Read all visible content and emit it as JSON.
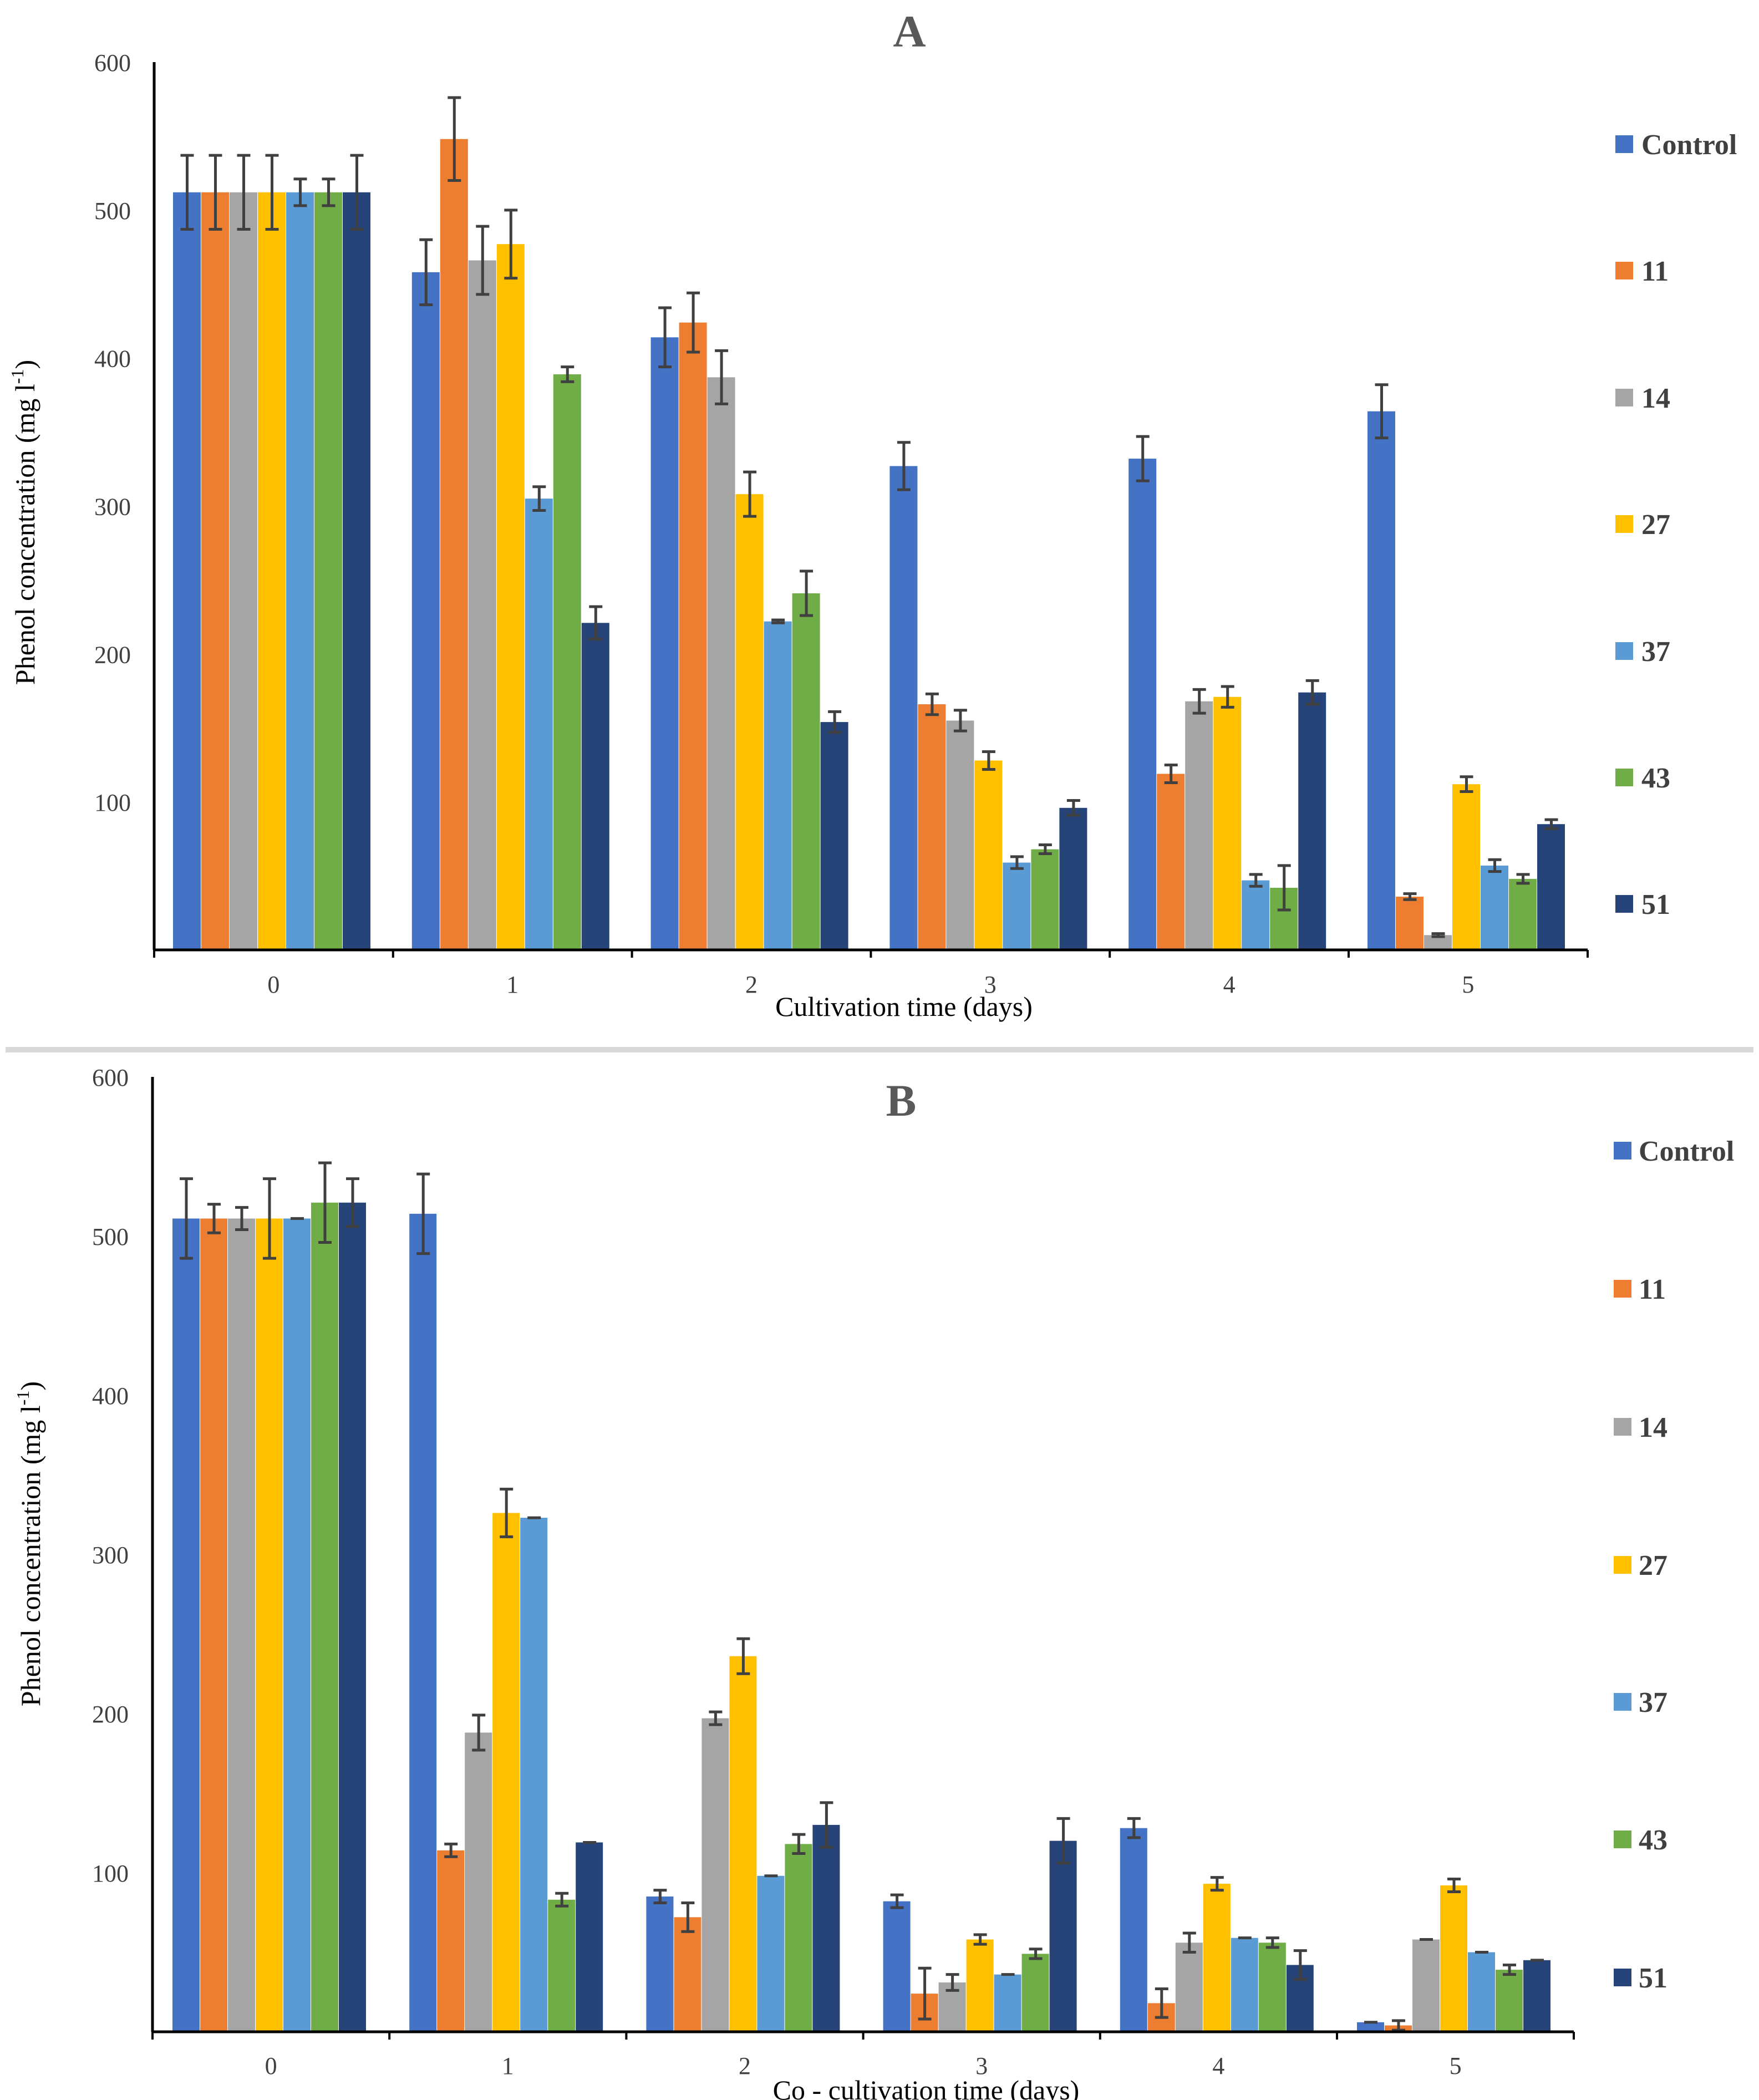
{
  "colors": {
    "Control": "#4472C4",
    "11": "#ED7D31",
    "14": "#A5A5A5",
    "27": "#FFC000",
    "37": "#5B9BD5",
    "43": "#70AD47",
    "51": "#264478",
    "error_bar": "#404040",
    "axis": "#000000",
    "separator": "#D9D9D9"
  },
  "chart_data": [
    {
      "type": "bar",
      "panel": "A",
      "title": "A",
      "xlabel": "Cultivation time (days)",
      "ylabel_main": "Phenol concentration (mg l",
      "ylabel_sup": "-1",
      "ylabel_close": ")",
      "ylim": [
        0,
        600
      ],
      "y_ticks": [
        "100",
        "200",
        "300",
        "400",
        "500",
        "600"
      ],
      "categories": [
        "0",
        "1",
        "2",
        "3",
        "4",
        "5"
      ],
      "legend_position": "right",
      "series": [
        {
          "name": "Control",
          "values": [
            512,
            458,
            414,
            327,
            332,
            364
          ],
          "errors": [
            25,
            22,
            20,
            16,
            15,
            18
          ]
        },
        {
          "name": "11",
          "values": [
            512,
            548,
            424,
            166,
            119,
            36
          ],
          "errors": [
            25,
            28,
            20,
            7,
            6,
            2
          ]
        },
        {
          "name": "14",
          "values": [
            512,
            466,
            387,
            155,
            168,
            10
          ],
          "errors": [
            25,
            23,
            18,
            7,
            8,
            1
          ]
        },
        {
          "name": "27",
          "values": [
            512,
            477,
            308,
            128,
            171,
            112
          ],
          "errors": [
            25,
            23,
            15,
            6,
            7,
            5
          ]
        },
        {
          "name": "37",
          "values": [
            512,
            305,
            222,
            59,
            47,
            57
          ],
          "errors": [
            9,
            8,
            1,
            4,
            4,
            4
          ]
        },
        {
          "name": "43",
          "values": [
            512,
            389,
            241,
            68,
            42,
            48
          ],
          "errors": [
            9,
            5,
            15,
            3,
            15,
            3
          ]
        },
        {
          "name": "51",
          "values": [
            512,
            221,
            154,
            96,
            174,
            85
          ],
          "errors": [
            25,
            11,
            7,
            5,
            8,
            3
          ]
        }
      ]
    },
    {
      "type": "bar",
      "panel": "B",
      "title": "B",
      "xlabel": "Co - cultivation time (days)",
      "ylabel_main": "Phenol concentration (mg l",
      "ylabel_sup": "-1",
      "ylabel_close": ")",
      "ylim": [
        0,
        600
      ],
      "y_ticks": [
        "100",
        "200",
        "300",
        "400",
        "500",
        "600"
      ],
      "categories": [
        "0",
        "1",
        "2",
        "3",
        "4",
        "5"
      ],
      "legend_position": "right",
      "series": [
        {
          "name": "Control",
          "values": [
            511,
            514,
            85,
            82,
            128,
            6
          ],
          "errors": [
            25,
            25,
            4,
            4,
            6,
            0
          ]
        },
        {
          "name": "11",
          "values": [
            511,
            114,
            72,
            24,
            18,
            4
          ],
          "errors": [
            9,
            4,
            9,
            16,
            9,
            3
          ]
        },
        {
          "name": "14",
          "values": [
            511,
            188,
            197,
            31,
            56,
            58
          ],
          "errors": [
            7,
            11,
            4,
            5,
            6,
            0
          ]
        },
        {
          "name": "27",
          "values": [
            511,
            326,
            236,
            58,
            93,
            92
          ],
          "errors": [
            25,
            15,
            11,
            3,
            4,
            4
          ]
        },
        {
          "name": "37",
          "values": [
            511,
            323,
            98,
            36,
            59,
            50
          ],
          "errors": [
            0,
            0,
            0,
            0,
            0,
            0
          ]
        },
        {
          "name": "43",
          "values": [
            521,
            83,
            118,
            49,
            56,
            39
          ],
          "errors": [
            25,
            4,
            6,
            3,
            3,
            3
          ]
        },
        {
          "name": "51",
          "values": [
            521,
            119,
            130,
            120,
            42,
            45
          ],
          "errors": [
            15,
            0,
            14,
            14,
            9,
            0
          ]
        }
      ]
    }
  ]
}
